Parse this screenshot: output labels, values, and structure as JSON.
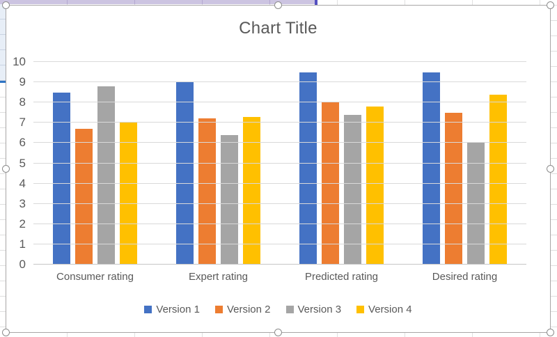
{
  "chart_data": {
    "type": "bar",
    "title": "Chart Title",
    "categories": [
      "Consumer rating",
      "Expert rating",
      "Predicted rating",
      "Desired rating"
    ],
    "series": [
      {
        "name": "Version 1",
        "color": "#4472C4",
        "values": [
          8.5,
          9.0,
          9.5,
          9.5
        ]
      },
      {
        "name": "Version 2",
        "color": "#ED7D31",
        "values": [
          6.7,
          7.2,
          8.0,
          7.5
        ]
      },
      {
        "name": "Version 3",
        "color": "#A5A5A5",
        "values": [
          8.8,
          6.4,
          7.4,
          6.0
        ]
      },
      {
        "name": "Version 4",
        "color": "#FFC000",
        "values": [
          7.0,
          7.3,
          7.8,
          8.4
        ]
      }
    ],
    "ylim": [
      0,
      10
    ],
    "ytick_step": 1,
    "yticks": [
      0,
      1,
      2,
      3,
      4,
      5,
      6,
      7,
      8,
      9,
      10
    ],
    "grid": true,
    "legend_position": "bottom"
  },
  "ui_colors": {
    "chart_text": "#595959",
    "gridline": "#D9D9D9",
    "axis_line": "#C6C6C6",
    "chart_border": "#A8A6A6",
    "selection_handle_border": "#8C8C8C",
    "excel_selection_band": "#CCC4E1",
    "excel_range_marker": "#5450C0",
    "excel_selected_cells": "#E7EEF7",
    "excel_range_border_blue": "#2E74C4",
    "spreadsheet_gridline": "#E0E0E0"
  },
  "selection_handles": [
    "top-left",
    "top-center",
    "top-right",
    "middle-left",
    "middle-right",
    "bottom-left",
    "bottom-center",
    "bottom-right"
  ]
}
